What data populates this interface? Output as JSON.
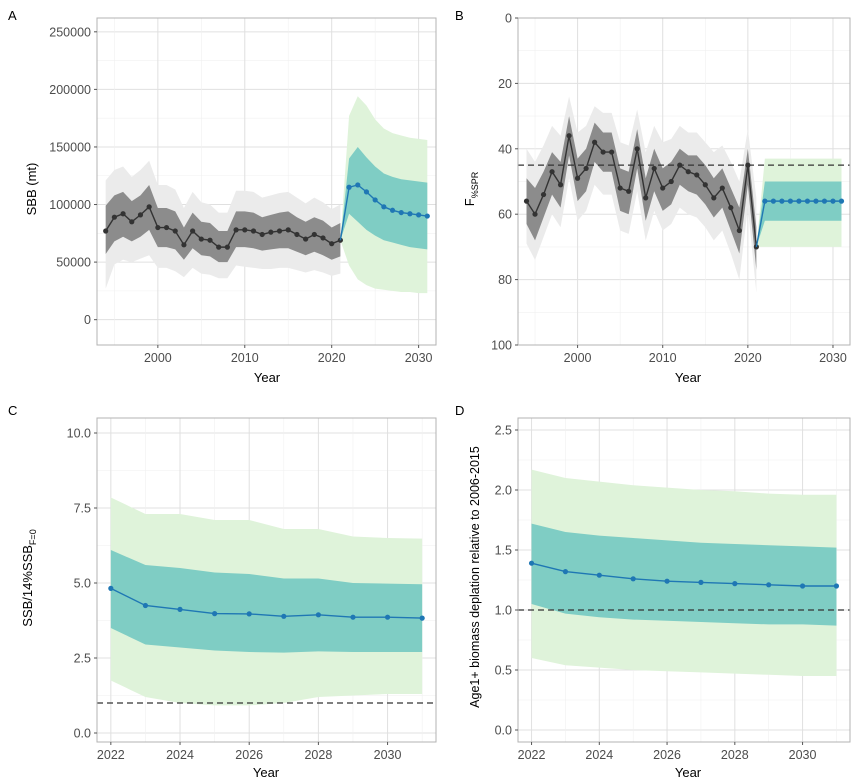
{
  "panels": {
    "A": {
      "letter": "A",
      "xlabel": "Year",
      "ylabel": "SBB (mt)"
    },
    "B": {
      "letter": "B",
      "xlabel": "Year",
      "ylabel_main": "F",
      "ylabel_sub": "%SPR"
    },
    "C": {
      "letter": "C",
      "xlabel": "Year",
      "ylabel_a": "SSB/14%SSB",
      "ylabel_sub": "F=0"
    },
    "D": {
      "letter": "D",
      "xlabel": "Year",
      "ylabel": "Age1+ biomass deplation relative to 2006-2015"
    }
  },
  "colors": {
    "historical_line": "#333333",
    "historical_inner_band": "#8c8c8c",
    "historical_outer_band": "#ebebeb",
    "projection_line": "#1f77b4",
    "projection_inner_band": "#7fcdc4",
    "projection_outer_band": "#dff3da",
    "reference_line": "#333333",
    "grid": "#e0e0e0"
  },
  "chart_data": [
    {
      "id": "A",
      "type": "line",
      "xlabel": "Year",
      "ylabel": "SBB (mt)",
      "xlim": [
        1993,
        2032
      ],
      "ylim": [
        -22000,
        262000
      ],
      "xticks": [
        2000,
        2010,
        2020,
        2030
      ],
      "yticks": [
        0,
        50000,
        100000,
        150000,
        200000,
        250000
      ],
      "ytick_labels": [
        "0",
        "50000",
        "100000",
        "150000",
        "200000",
        "250000"
      ],
      "inverted": false,
      "grid": true,
      "series": [
        {
          "role": "historical",
          "x": [
            1994,
            1995,
            1996,
            1997,
            1998,
            1999,
            2000,
            2001,
            2002,
            2003,
            2004,
            2005,
            2006,
            2007,
            2008,
            2009,
            2010,
            2011,
            2012,
            2013,
            2014,
            2015,
            2016,
            2017,
            2018,
            2019,
            2020,
            2021
          ],
          "y": [
            77000,
            89000,
            92000,
            85000,
            91000,
            98000,
            80000,
            80000,
            77000,
            65000,
            77000,
            70000,
            69000,
            63000,
            63000,
            78000,
            78000,
            77000,
            74000,
            76000,
            77000,
            78000,
            74000,
            70000,
            74000,
            71000,
            66000,
            69000
          ],
          "inner_low": [
            57000,
            68000,
            72000,
            68000,
            72000,
            78000,
            63000,
            63000,
            61000,
            52000,
            62000,
            56000,
            55000,
            50000,
            50000,
            63000,
            63000,
            62000,
            60000,
            61000,
            62000,
            62000,
            59000,
            56000,
            59000,
            56000,
            52000,
            55000
          ],
          "inner_high": [
            99000,
            108000,
            111000,
            103000,
            108000,
            117000,
            97000,
            97000,
            94000,
            80000,
            93000,
            85000,
            84000,
            77000,
            77000,
            94000,
            94000,
            93000,
            89000,
            91000,
            93000,
            94000,
            89000,
            85000,
            89000,
            86000,
            80000,
            84000
          ],
          "outer_low": [
            27000,
            48000,
            52000,
            50000,
            53000,
            56000,
            45000,
            45000,
            42000,
            37000,
            45000,
            40000,
            39000,
            36000,
            36000,
            47000,
            46000,
            45000,
            44000,
            44000,
            45000,
            45000,
            43000,
            41000,
            43000,
            41000,
            38000,
            40000
          ],
          "outer_high": [
            121000,
            130000,
            133000,
            124000,
            130000,
            138000,
            117000,
            117000,
            113000,
            97000,
            111000,
            102000,
            100000,
            93000,
            93000,
            112000,
            112000,
            111000,
            106000,
            108000,
            110000,
            111000,
            106000,
            101000,
            106000,
            102000,
            96000,
            100000
          ]
        },
        {
          "role": "projection",
          "x": [
            2021,
            2022,
            2023,
            2024,
            2025,
            2026,
            2027,
            2028,
            2029,
            2030,
            2031
          ],
          "y": [
            69000,
            115000,
            117000,
            111000,
            104000,
            98000,
            95000,
            93000,
            92000,
            91000,
            90000
          ],
          "inner_low": [
            69000,
            92000,
            85000,
            78000,
            73000,
            69000,
            67000,
            65000,
            63000,
            62000,
            61000
          ],
          "inner_high": [
            69000,
            140000,
            150000,
            141000,
            133000,
            127000,
            124000,
            122000,
            121000,
            120000,
            119000
          ],
          "outer_low": [
            69000,
            47000,
            35000,
            30000,
            27000,
            26000,
            25000,
            24000,
            24000,
            23000,
            23000
          ],
          "outer_high": [
            69000,
            177000,
            194000,
            186000,
            174000,
            166000,
            162000,
            160000,
            158000,
            157000,
            156000
          ]
        }
      ],
      "reference_lines": []
    },
    {
      "id": "B",
      "type": "line",
      "xlabel": "Year",
      "ylabel": "F%SPR",
      "xlim": [
        1993,
        2032
      ],
      "ylim": [
        0,
        100
      ],
      "xticks": [
        2000,
        2010,
        2020,
        2030
      ],
      "yticks": [
        0,
        20,
        40,
        60,
        80,
        100
      ],
      "ytick_labels": [
        "0",
        "20",
        "40",
        "60",
        "80",
        "100"
      ],
      "inverted": true,
      "grid": true,
      "series": [
        {
          "role": "historical",
          "x": [
            1994,
            1995,
            1996,
            1997,
            1998,
            1999,
            2000,
            2001,
            2002,
            2003,
            2004,
            2005,
            2006,
            2007,
            2008,
            2009,
            2010,
            2011,
            2012,
            2013,
            2014,
            2015,
            2016,
            2017,
            2018,
            2019,
            2020,
            2021
          ],
          "y": [
            56,
            60,
            54,
            47,
            51,
            36,
            49,
            46,
            38,
            41,
            41,
            52,
            53,
            40,
            55,
            46,
            52,
            50,
            45,
            47,
            48,
            51,
            55,
            52,
            58,
            65,
            45,
            70
          ],
          "inner_low": [
            49,
            52,
            47,
            41,
            44,
            30,
            43,
            40,
            32,
            35,
            35,
            46,
            47,
            34,
            49,
            40,
            46,
            44,
            40,
            42,
            42,
            45,
            49,
            46,
            52,
            58,
            40,
            64
          ],
          "inner_high": [
            63,
            68,
            61,
            54,
            58,
            42,
            56,
            53,
            44,
            47,
            47,
            59,
            60,
            46,
            62,
            53,
            59,
            57,
            51,
            53,
            54,
            57,
            61,
            58,
            65,
            72,
            51,
            77
          ],
          "outer_low": [
            40,
            44,
            39,
            33,
            36,
            24,
            35,
            33,
            27,
            29,
            29,
            38,
            39,
            28,
            41,
            33,
            38,
            37,
            33,
            35,
            35,
            38,
            41,
            39,
            44,
            50,
            34,
            55
          ],
          "outer_high": [
            69,
            74,
            67,
            60,
            64,
            49,
            62,
            59,
            51,
            54,
            54,
            65,
            66,
            53,
            68,
            59,
            65,
            63,
            58,
            60,
            61,
            64,
            68,
            65,
            72,
            80,
            58,
            84
          ]
        },
        {
          "role": "projection",
          "x": [
            2021,
            2022,
            2023,
            2024,
            2025,
            2026,
            2027,
            2028,
            2029,
            2030,
            2031
          ],
          "y": [
            70,
            56,
            56,
            56,
            56,
            56,
            56,
            56,
            56,
            56,
            56
          ],
          "inner_low": [
            70,
            50,
            50,
            50,
            50,
            50,
            50,
            50,
            50,
            50,
            50
          ],
          "inner_high": [
            70,
            62,
            62,
            62,
            62,
            62,
            62,
            62,
            62,
            62,
            62
          ],
          "outer_low": [
            70,
            43,
            43,
            43,
            43,
            43,
            43,
            43,
            43,
            43,
            43
          ],
          "outer_high": [
            70,
            70,
            70,
            70,
            70,
            70,
            70,
            70,
            70,
            70,
            70
          ]
        }
      ],
      "reference_lines": [
        {
          "value": 45,
          "style": "dashed"
        }
      ]
    },
    {
      "id": "C",
      "type": "line",
      "xlabel": "Year",
      "ylabel": "SSB/14%SSBF=0",
      "xlim": [
        2021.6,
        2031.4
      ],
      "ylim": [
        -0.3,
        10.5
      ],
      "xticks": [
        2022,
        2024,
        2026,
        2028,
        2030
      ],
      "yticks": [
        0,
        2.5,
        5,
        7.5,
        10
      ],
      "ytick_labels": [
        "0.0",
        "2.5",
        "5.0",
        "7.5",
        "10.0"
      ],
      "inverted": false,
      "grid": true,
      "series": [
        {
          "role": "projection",
          "x": [
            2022,
            2023,
            2024,
            2025,
            2026,
            2027,
            2028,
            2029,
            2030,
            2031
          ],
          "y": [
            4.82,
            4.25,
            4.12,
            3.98,
            3.97,
            3.89,
            3.94,
            3.86,
            3.86,
            3.83
          ],
          "inner_low": [
            3.5,
            2.95,
            2.85,
            2.75,
            2.7,
            2.68,
            2.72,
            2.7,
            2.7,
            2.7
          ],
          "inner_high": [
            6.1,
            5.6,
            5.5,
            5.35,
            5.3,
            5.15,
            5.15,
            5.0,
            4.98,
            4.96
          ],
          "outer_low": [
            1.75,
            1.2,
            1.0,
            0.92,
            0.92,
            1.0,
            1.2,
            1.25,
            1.3,
            1.3
          ],
          "outer_high": [
            7.85,
            7.3,
            7.3,
            7.1,
            7.1,
            6.8,
            6.8,
            6.55,
            6.5,
            6.48
          ]
        }
      ],
      "reference_lines": [
        {
          "value": 1,
          "style": "dashed"
        }
      ]
    },
    {
      "id": "D",
      "type": "line",
      "xlabel": "Year",
      "ylabel": "Age1+ biomass deplation relative to 2006-2015",
      "xlim": [
        2021.6,
        2031.4
      ],
      "ylim": [
        -0.1,
        2.6
      ],
      "xticks": [
        2022,
        2024,
        2026,
        2028,
        2030
      ],
      "yticks": [
        0,
        0.5,
        1,
        1.5,
        2,
        2.5
      ],
      "ytick_labels": [
        "0.0",
        "0.5",
        "1.0",
        "1.5",
        "2.0",
        "2.5"
      ],
      "inverted": false,
      "grid": true,
      "series": [
        {
          "role": "projection",
          "x": [
            2022,
            2023,
            2024,
            2025,
            2026,
            2027,
            2028,
            2029,
            2030,
            2031
          ],
          "y": [
            1.39,
            1.32,
            1.29,
            1.26,
            1.24,
            1.23,
            1.22,
            1.21,
            1.2,
            1.2
          ],
          "inner_low": [
            1.05,
            0.97,
            0.94,
            0.92,
            0.91,
            0.9,
            0.89,
            0.88,
            0.88,
            0.87
          ],
          "inner_high": [
            1.72,
            1.65,
            1.62,
            1.6,
            1.58,
            1.56,
            1.55,
            1.54,
            1.53,
            1.52
          ],
          "outer_low": [
            0.6,
            0.54,
            0.52,
            0.5,
            0.49,
            0.48,
            0.47,
            0.46,
            0.45,
            0.45
          ],
          "outer_high": [
            2.17,
            2.1,
            2.07,
            2.04,
            2.02,
            2.0,
            1.99,
            1.97,
            1.96,
            1.96
          ]
        }
      ],
      "reference_lines": [
        {
          "value": 1,
          "style": "dashed"
        }
      ]
    }
  ]
}
